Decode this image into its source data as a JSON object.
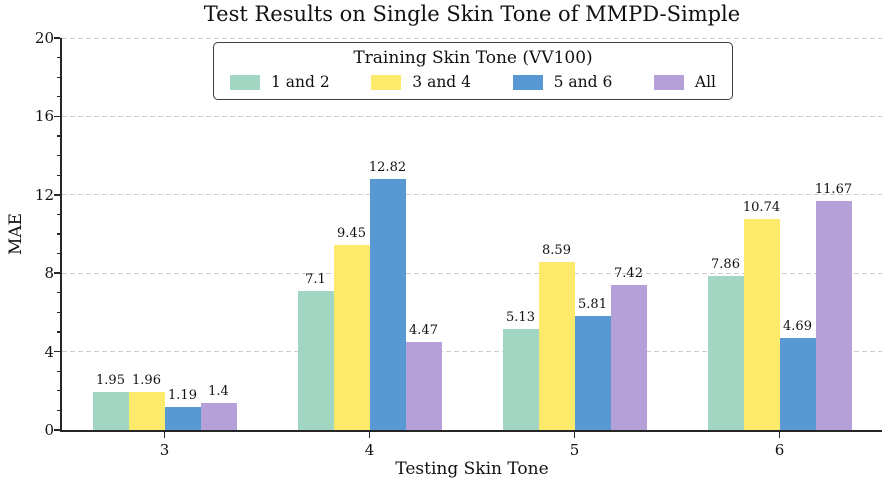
{
  "chart_data": {
    "type": "bar",
    "title": "Test Results on Single Skin Tone of MMPD-Simple",
    "xlabel": "Testing Skin Tone",
    "ylabel": "MAE",
    "categories": [
      "3",
      "4",
      "5",
      "6"
    ],
    "series": [
      {
        "name": "1 and 2",
        "color": "#a2d5c2",
        "values": [
          1.95,
          7.1,
          5.13,
          7.86
        ],
        "value_labels": [
          "1.95",
          "7.1",
          "5.13",
          "7.86"
        ]
      },
      {
        "name": "3 and 4",
        "color": "#fdea6b",
        "values": [
          1.96,
          9.45,
          8.59,
          10.74
        ],
        "value_labels": [
          "1.96",
          "9.45",
          "8.59",
          "10.74"
        ]
      },
      {
        "name": "5 and 6",
        "color": "#5999d3",
        "values": [
          1.19,
          12.82,
          5.81,
          4.69
        ],
        "value_labels": [
          "1.19",
          "12.82",
          "5.81",
          "4.69"
        ]
      },
      {
        "name": "All",
        "color": "#b5a0d8",
        "values": [
          1.4,
          4.47,
          7.42,
          11.67
        ],
        "value_labels": [
          "1.4",
          "4.47",
          "7.42",
          "11.67"
        ]
      }
    ],
    "ylim": [
      0,
      20
    ],
    "yticks": [
      0,
      4,
      8,
      12,
      16,
      20
    ],
    "minor_tick_step": 1,
    "grid": {
      "axis": "y",
      "style": "dashed",
      "color": "#cdcdcd"
    },
    "legend": {
      "title": "Training Skin Tone (VV100)",
      "position": "upper center"
    },
    "axis_color": "#262626"
  }
}
